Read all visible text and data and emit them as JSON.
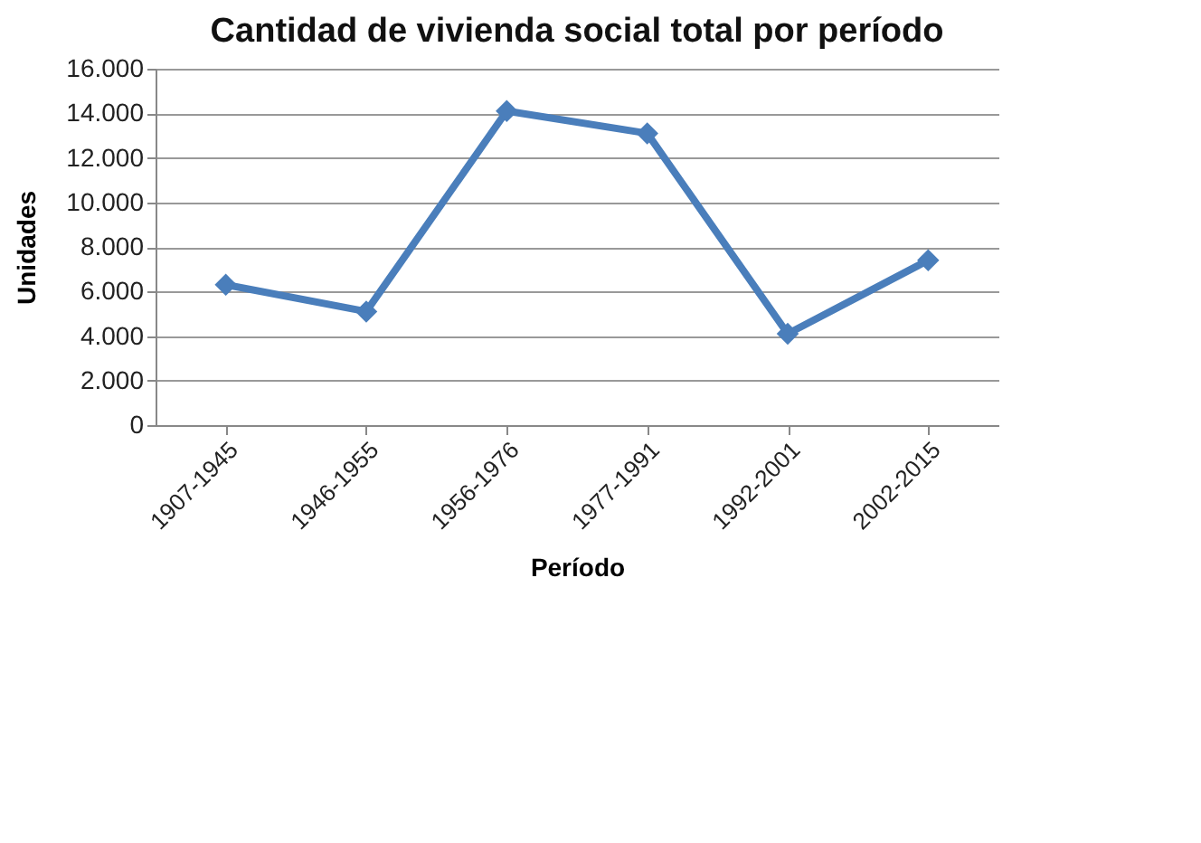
{
  "chart_data": {
    "type": "line",
    "title": "Cantidad de vivienda social total por período",
    "xlabel": "Período",
    "ylabel": "Unidades",
    "categories": [
      "1907-1945",
      "1946-1955",
      "1956-1976",
      "1977-1991",
      "1992-2001",
      "2002-2015"
    ],
    "series": [
      {
        "color": "#4a7ebb",
        "values": [
          6300,
          5100,
          14100,
          13100,
          4100,
          7400
        ]
      }
    ],
    "ylim": [
      0,
      16000
    ],
    "yticks": [
      0,
      {
        "value": 2000,
        "label": "2.000"
      },
      {
        "value": 4000,
        "label": "4.000"
      },
      {
        "value": 6000,
        "label": "6.000"
      },
      {
        "value": 8000,
        "label": "8.000"
      },
      {
        "value": 10000,
        "label": "10.000"
      },
      {
        "value": 12000,
        "label": "12.000"
      },
      {
        "value": 14000,
        "label": "14.000"
      },
      {
        "value": 16000,
        "label": "16.000"
      }
    ],
    "grid": "y",
    "legend": false,
    "marker": "diamond",
    "line_style": "solid"
  }
}
